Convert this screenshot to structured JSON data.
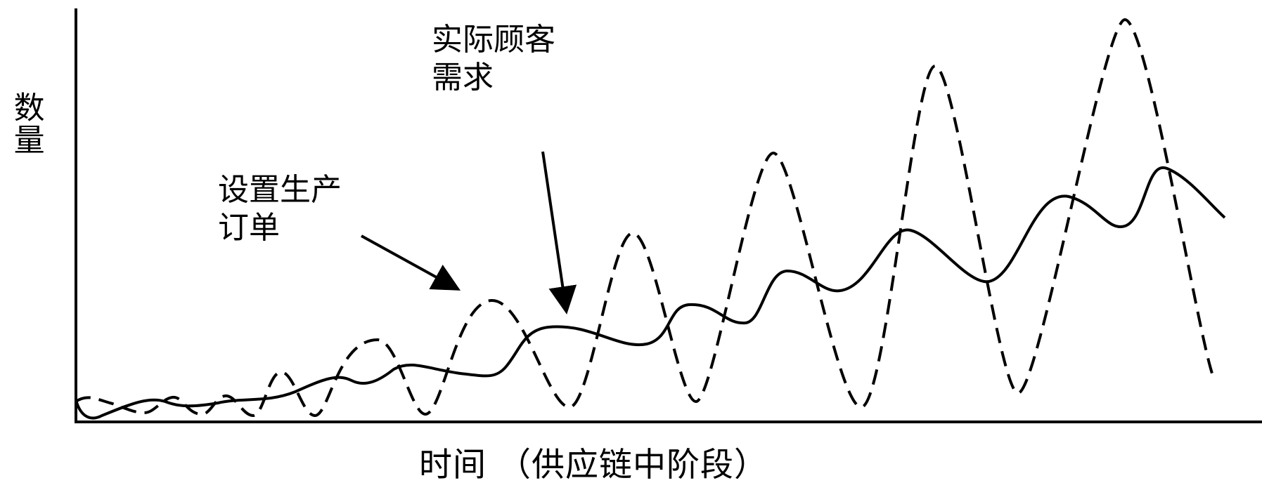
{
  "y_axis_label": "数量",
  "x_axis_label": "时间 （供应链中阶段）",
  "annotations": {
    "production_orders": [
      "设置生产",
      "订单"
    ],
    "customer_demand": [
      "实际顾客",
      "需求"
    ]
  },
  "colors": {
    "line": "#000000",
    "background": "#ffffff"
  },
  "legend": "none"
}
